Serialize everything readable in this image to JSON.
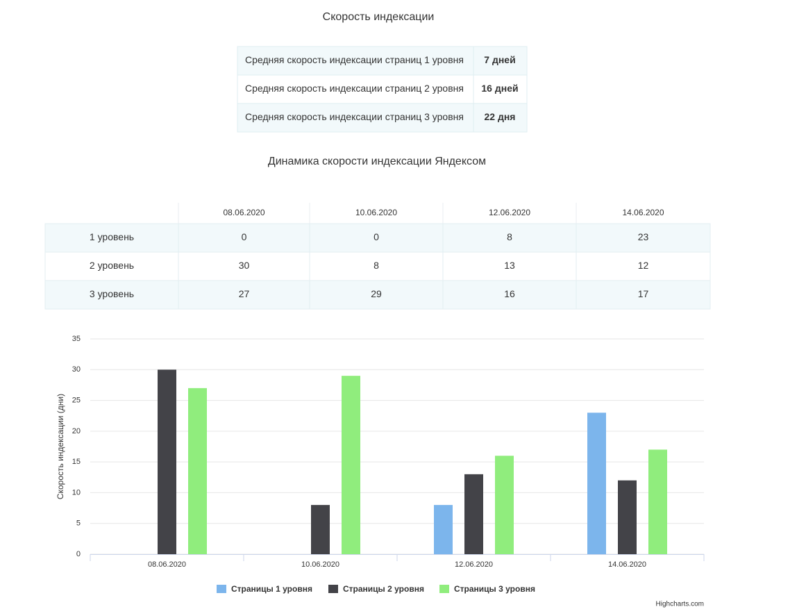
{
  "summary": {
    "title": "Скорость индексации",
    "rows": [
      [
        "Средняя скорость индексации страниц 1 уровня",
        "7 дней"
      ],
      [
        "Средняя скорость индексации страниц 2 уровня",
        "16 дней"
      ],
      [
        "Средняя скорость индексации страниц 3 уровня",
        "22 дня"
      ]
    ]
  },
  "dynamics": {
    "title": "Динамика скорости индексации Яндексом",
    "columns": [
      "08.06.2020",
      "10.06.2020",
      "12.06.2020",
      "14.06.2020"
    ],
    "rows": [
      {
        "label": "1 уровень",
        "values": [
          0,
          0,
          8,
          23
        ]
      },
      {
        "label": "2 уровень",
        "values": [
          30,
          8,
          13,
          12
        ]
      },
      {
        "label": "3 уровень",
        "values": [
          27,
          29,
          16,
          17
        ]
      }
    ]
  },
  "chart_data": {
    "type": "bar",
    "categories": [
      "08.06.2020",
      "10.06.2020",
      "12.06.2020",
      "14.06.2020"
    ],
    "series": [
      {
        "name": "Страницы 1 уровня",
        "color": "#7cb5ec",
        "values": [
          0,
          0,
          8,
          23
        ]
      },
      {
        "name": "Страницы 2 уровня",
        "color": "#434348",
        "values": [
          30,
          8,
          13,
          12
        ]
      },
      {
        "name": "Страницы 3 уровня",
        "color": "#90ed7d",
        "values": [
          27,
          29,
          16,
          17
        ]
      }
    ],
    "y_label": "Скорость индексации (дни)",
    "ylim": [
      0,
      35
    ],
    "yticks": [
      0,
      5,
      10,
      15,
      20,
      25,
      30,
      35
    ],
    "grid": true,
    "legend": "bottom",
    "credits": "Highcharts.com"
  }
}
